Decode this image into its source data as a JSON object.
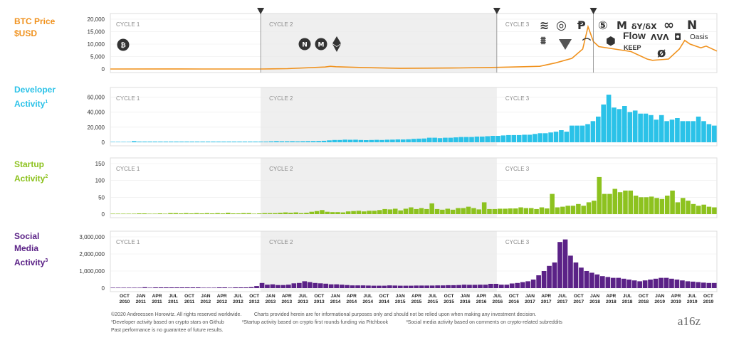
{
  "panels": [
    {
      "label_l1": "BTC Price",
      "label_l2": "$USD",
      "sup": "",
      "color": "#F0921E",
      "yticks": [
        "20,000",
        "15,000",
        "10,000",
        "5,000",
        "0"
      ]
    },
    {
      "label_l1": "Developer",
      "label_l2": "Activity",
      "sup": "1",
      "color": "#2BC2E8",
      "yticks": [
        "60,000",
        "40,000",
        "20,000",
        "0"
      ]
    },
    {
      "label_l1": "Startup",
      "label_l2": "Activity",
      "sup": "2",
      "color": "#8DC21F",
      "yticks": [
        "150",
        "100",
        "50",
        "0"
      ]
    },
    {
      "label_l1": "Social",
      "label_l2": "Media",
      "label_l3": "Activity",
      "sup": "3",
      "color": "#5B2287",
      "yticks": [
        "3,000,000",
        "2,000,000",
        "1,000,000",
        "0"
      ]
    }
  ],
  "cycles": [
    "CYCLE 1",
    "CYCLE 2",
    "CYCLE 3"
  ],
  "xaxis": [
    [
      "OCT",
      "2010"
    ],
    [
      "JAN",
      "2011"
    ],
    [
      "APR",
      "2011"
    ],
    [
      "JUL",
      "2011"
    ],
    [
      "OCT",
      "2011"
    ],
    [
      "JAN",
      "2012"
    ],
    [
      "APR",
      "2012"
    ],
    [
      "JUL",
      "2012"
    ],
    [
      "OCT",
      "2012"
    ],
    [
      "JAN",
      "2013"
    ],
    [
      "APR",
      "2013"
    ],
    [
      "JUL",
      "2013"
    ],
    [
      "OCT",
      "2013"
    ],
    [
      "JAN",
      "2014"
    ],
    [
      "APR",
      "2014"
    ],
    [
      "JUL",
      "2014"
    ],
    [
      "OCT",
      "2014"
    ],
    [
      "JAN",
      "2015"
    ],
    [
      "APR",
      "2015"
    ],
    [
      "JUL",
      "2015"
    ],
    [
      "OCT",
      "2015"
    ],
    [
      "JAN",
      "2016"
    ],
    [
      "APR",
      "2016"
    ],
    [
      "JUL",
      "2016"
    ],
    [
      "OCT",
      "2016"
    ],
    [
      "JAN",
      "2017"
    ],
    [
      "APR",
      "2017"
    ],
    [
      "JUL",
      "2017"
    ],
    [
      "OCT",
      "2017"
    ],
    [
      "JAN",
      "2018"
    ],
    [
      "APR",
      "2018"
    ],
    [
      "JUL",
      "2018"
    ],
    [
      "OCT",
      "2018"
    ],
    [
      "JAN",
      "2019"
    ],
    [
      "APR",
      "2019"
    ],
    [
      "JUL",
      "2019"
    ],
    [
      "OCT",
      "2019"
    ]
  ],
  "project_logos": [
    "Flow",
    "Oasis",
    "KEEP"
  ],
  "footer": {
    "line1a": "©2020 Andreessen Horowitz. All rights reserved worldwide.",
    "line1b": "Charts provided herein are for informational purposes only and should not be relied upon when making any investment decision.",
    "note1": "¹Developer activity based on crypto stars on Github",
    "note2": "²Startup activity based on crypto first rounds funding via Pitchbook",
    "note3": "³Social media activity based on comments on crypto-related subreddits",
    "line3": "Past performance is no guarantee of future results."
  },
  "brand": "a16z",
  "chart_data": {
    "type": "bar",
    "title": "",
    "x_start": "2010-07",
    "x_end": "2019-12",
    "cycle_ranges": [
      [
        "2010-07",
        "2012-11"
      ],
      [
        "2012-11",
        "2016-07"
      ],
      [
        "2016-07",
        "2019-12"
      ]
    ],
    "halving_markers": [
      "2012-11",
      "2016-07",
      "2018-01"
    ],
    "btc_price": {
      "type": "line",
      "ylim": [
        0,
        20000
      ],
      "points": [
        [
          "2010-07",
          0
        ],
        [
          "2011-06",
          20
        ],
        [
          "2011-12",
          3
        ],
        [
          "2012-11",
          12
        ],
        [
          "2013-04",
          130
        ],
        [
          "2013-11",
          800
        ],
        [
          "2013-12",
          1100
        ],
        [
          "2014-01",
          900
        ],
        [
          "2014-06",
          600
        ],
        [
          "2015-01",
          250
        ],
        [
          "2015-12",
          430
        ],
        [
          "2016-07",
          650
        ],
        [
          "2016-12",
          900
        ],
        [
          "2017-03",
          1100
        ],
        [
          "2017-06",
          2500
        ],
        [
          "2017-09",
          4300
        ],
        [
          "2017-11",
          8000
        ],
        [
          "2017-12",
          17000
        ],
        [
          "2018-01",
          11000
        ],
        [
          "2018-02",
          9000
        ],
        [
          "2018-05",
          8000
        ],
        [
          "2018-08",
          7000
        ],
        [
          "2018-11",
          4000
        ],
        [
          "2018-12",
          3500
        ],
        [
          "2019-03",
          4000
        ],
        [
          "2019-05",
          8000
        ],
        [
          "2019-06",
          11500
        ],
        [
          "2019-07",
          10000
        ],
        [
          "2019-09",
          8500
        ],
        [
          "2019-10",
          9200
        ],
        [
          "2019-12",
          7200
        ]
      ]
    },
    "developer_activity": {
      "ylim": [
        0,
        65000
      ],
      "values": [
        0,
        0,
        0,
        0,
        1500,
        800,
        300,
        200,
        200,
        300,
        300,
        200,
        200,
        100,
        200,
        200,
        200,
        300,
        400,
        300,
        300,
        200,
        300,
        300,
        400,
        400,
        400,
        500,
        600,
        800,
        1200,
        1500,
        1300,
        1300,
        1400,
        1200,
        1400,
        1500,
        1600,
        1700,
        2000,
        2500,
        3000,
        3000,
        3500,
        3300,
        3400,
        3000,
        2800,
        3000,
        3200,
        3000,
        3400,
        3500,
        3800,
        3700,
        4000,
        4500,
        4800,
        5000,
        6000,
        6000,
        5500,
        6000,
        6000,
        6500,
        7000,
        7000,
        7000,
        7500,
        7500,
        8000,
        8500,
        8500,
        9000,
        9500,
        9500,
        9500,
        10000,
        10000,
        11000,
        12000,
        12000,
        13000,
        14000,
        16000,
        14000,
        22000,
        22000,
        22000,
        24000,
        28000,
        34000,
        50000,
        63000,
        46000,
        44000,
        48000,
        40000,
        42000,
        38000,
        38000,
        36000,
        30000,
        36000,
        28000,
        30000,
        32000,
        28000,
        28000,
        28000,
        34000,
        28000,
        24000,
        22000
      ]
    },
    "startup_activity": {
      "ylim": [
        0,
        150
      ],
      "values": [
        0,
        0,
        0,
        0,
        0,
        2,
        1,
        0,
        0,
        2,
        0,
        3,
        3,
        2,
        3,
        1,
        3,
        2,
        3,
        2,
        3,
        1,
        4,
        2,
        1,
        3,
        3,
        0,
        1,
        3,
        3,
        3,
        4,
        5,
        4,
        5,
        3,
        4,
        7,
        9,
        12,
        7,
        6,
        6,
        5,
        8,
        9,
        10,
        8,
        10,
        10,
        12,
        15,
        14,
        16,
        11,
        16,
        20,
        15,
        18,
        15,
        32,
        15,
        13,
        16,
        13,
        18,
        18,
        22,
        18,
        14,
        35,
        15,
        15,
        16,
        16,
        17,
        17,
        20,
        18,
        18,
        15,
        20,
        17,
        60,
        20,
        22,
        25,
        25,
        30,
        25,
        35,
        40,
        110,
        60,
        60,
        75,
        65,
        70,
        70,
        55,
        50,
        50,
        52,
        48,
        45,
        55,
        70,
        35,
        48,
        40,
        30,
        25,
        28,
        22,
        20
      ]
    },
    "social_media_activity": {
      "ylim": [
        0,
        3000000
      ],
      "values": [
        0,
        0,
        0,
        0,
        0,
        0,
        50000,
        0,
        10000,
        20000,
        10000,
        10000,
        15000,
        10000,
        10000,
        5000,
        10000,
        0,
        0,
        0,
        10000,
        10000,
        0,
        10000,
        20000,
        30000,
        60000,
        120000,
        300000,
        200000,
        220000,
        180000,
        180000,
        200000,
        280000,
        300000,
        400000,
        350000,
        300000,
        280000,
        260000,
        220000,
        220000,
        200000,
        180000,
        160000,
        160000,
        160000,
        150000,
        140000,
        140000,
        140000,
        160000,
        150000,
        140000,
        140000,
        140000,
        150000,
        150000,
        150000,
        150000,
        160000,
        160000,
        170000,
        170000,
        180000,
        200000,
        190000,
        190000,
        200000,
        200000,
        250000,
        250000,
        200000,
        200000,
        270000,
        300000,
        350000,
        400000,
        500000,
        750000,
        1000000,
        1300000,
        1500000,
        2700000,
        2850000,
        1900000,
        1500000,
        1200000,
        1000000,
        900000,
        800000,
        700000,
        650000,
        600000,
        600000,
        550000,
        500000,
        450000,
        400000,
        450000,
        500000,
        550000,
        600000,
        600000,
        550000,
        500000,
        450000,
        400000,
        380000,
        350000,
        320000,
        300000,
        300000
      ]
    }
  }
}
